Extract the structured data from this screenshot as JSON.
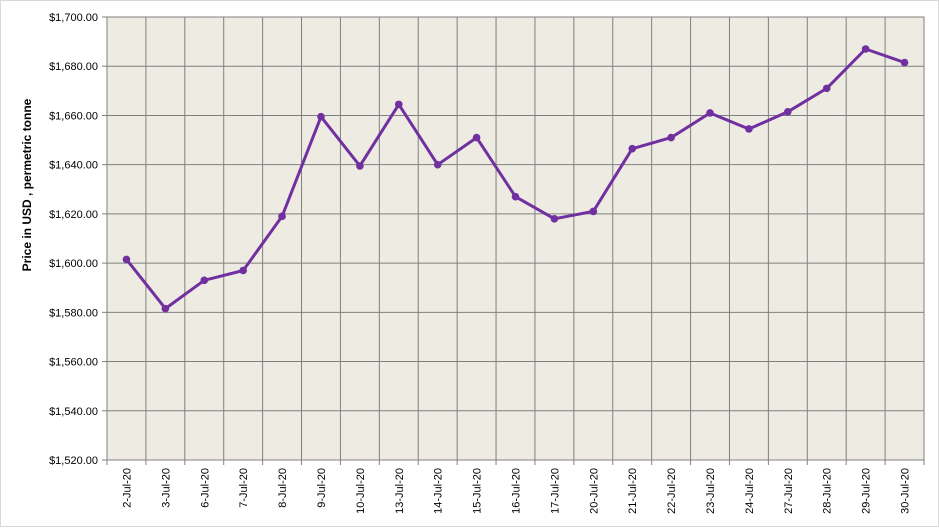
{
  "chart_data": {
    "type": "line",
    "title": "",
    "xlabel": "",
    "ylabel": "Price in USD , permetric tonne",
    "ylim": [
      1520,
      1700
    ],
    "y_tick_values": [
      1520,
      1540,
      1560,
      1580,
      1600,
      1620,
      1640,
      1660,
      1680,
      1700
    ],
    "y_tick_labels": [
      "$1,520.00",
      "$1,540.00",
      "$1,560.00",
      "$1,580.00",
      "$1,600.00",
      "$1,620.00",
      "$1,640.00",
      "$1,660.00",
      "$1,680.00",
      "$1,700.00"
    ],
    "grid": true,
    "legend": "none",
    "categories": [
      "2-Jul-20",
      "3-Jul-20",
      "6-Jul-20",
      "7-Jul-20",
      "8-Jul-20",
      "9-Jul-20",
      "10-Jul-20",
      "13-Jul-20",
      "14-Jul-20",
      "15-Jul-20",
      "16-Jul-20",
      "17-Jul-20",
      "20-Jul-20",
      "21-Jul-20",
      "22-Jul-20",
      "23-Jul-20",
      "24-Jul-20",
      "27-Jul-20",
      "28-Jul-20",
      "29-Jul-20",
      "30-Jul-20"
    ],
    "series": [
      {
        "values": [
          1601.5,
          1581.5,
          1593,
          1597,
          1619,
          1659.5,
          1639.5,
          1664.5,
          1640,
          1651,
          1627,
          1618,
          1621,
          1646.5,
          1651,
          1661,
          1654.5,
          1661.5,
          1671,
          1687,
          1681.5
        ]
      }
    ],
    "colors": {
      "plot_background": "#eeebe2",
      "grid": "#808080",
      "line": "#7030a0",
      "marker": "#7030a0"
    }
  }
}
